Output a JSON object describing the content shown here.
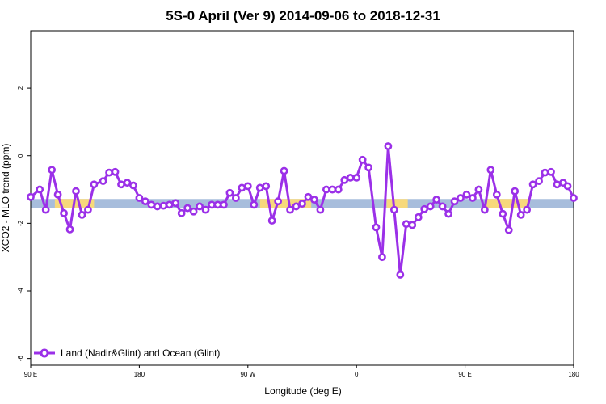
{
  "colors": {
    "series_line": "#9b30e8",
    "point_fill": "#ffffff",
    "ocean_band": "#a7bddc",
    "land_band": "#f7d97c",
    "frame": "#000000"
  },
  "chart_data": {
    "type": "line",
    "title": "5S-0 April (Ver 9)   2014-09-06 to 2018-12-31",
    "xlabel": "Longitude (deg E)",
    "ylabel": "XCO2 - MLO trend (ppm)",
    "xlim": [
      0,
      360
    ],
    "ylim": [
      -6.2,
      3.7
    ],
    "x_unit_note": "",
    "x_ticks": [
      {
        "value": 0,
        "label": "90 E"
      },
      {
        "value": 72,
        "label": "180"
      },
      {
        "value": 144,
        "label": "90 W"
      },
      {
        "value": 216,
        "label": "0"
      },
      {
        "value": 288,
        "label": "90 E"
      },
      {
        "value": 360,
        "label": "180"
      }
    ],
    "y_ticks": [
      {
        "value": -6,
        "label": "-6"
      },
      {
        "value": -4,
        "label": "-4"
      },
      {
        "value": -2,
        "label": "-2"
      },
      {
        "value": 0,
        "label": "0"
      },
      {
        "value": 2,
        "label": "2"
      }
    ],
    "grid": false,
    "legend_position": "bottom-left",
    "series": [
      {
        "name": "Land (Nadir&Glint) and Ocean (Glint)",
        "x": [
          0,
          6,
          10,
          14,
          18,
          22,
          26,
          30,
          34,
          38,
          42,
          48,
          52,
          56,
          60,
          64,
          68,
          72,
          76,
          80,
          84,
          88,
          92,
          96,
          100,
          104,
          108,
          112,
          116,
          120,
          124,
          128,
          132,
          136,
          140,
          144,
          148,
          152,
          156,
          160,
          164,
          168,
          172,
          176,
          180,
          184,
          188,
          192,
          196,
          200,
          204,
          208,
          212,
          216,
          220,
          224,
          229,
          233,
          237,
          241,
          245,
          249,
          253,
          257,
          261,
          265,
          269,
          273,
          277,
          281,
          285,
          289,
          293,
          297,
          301,
          305,
          309,
          313,
          317,
          321,
          325,
          329,
          333,
          337,
          341,
          345,
          349,
          353,
          356,
          360
        ],
        "y": [
          -1.22,
          -1.0,
          -1.6,
          -0.42,
          -1.15,
          -1.7,
          -2.18,
          -1.05,
          -1.75,
          -1.6,
          -0.85,
          -0.75,
          -0.5,
          -0.48,
          -0.85,
          -0.8,
          -0.88,
          -1.25,
          -1.35,
          -1.45,
          -1.5,
          -1.48,
          -1.45,
          -1.4,
          -1.7,
          -1.55,
          -1.65,
          -1.5,
          -1.6,
          -1.45,
          -1.45,
          -1.45,
          -1.1,
          -1.25,
          -0.95,
          -0.9,
          -1.45,
          -0.95,
          -0.9,
          -1.92,
          -1.35,
          -0.45,
          -1.6,
          -1.5,
          -1.42,
          -1.22,
          -1.3,
          -1.6,
          -1.0,
          -1.0,
          -1.0,
          -0.72,
          -0.65,
          -0.65,
          -0.12,
          -0.35,
          -2.12,
          -3.0,
          0.28,
          -1.6,
          -3.52,
          -2.02,
          -2.05,
          -1.82,
          -1.58,
          -1.5,
          -1.3,
          -1.5,
          -1.72,
          -1.35,
          -1.25,
          -1.15,
          -1.25,
          -1.0,
          -1.6,
          -0.42,
          -1.15,
          -1.72,
          -2.2,
          -1.05,
          -1.75,
          -1.6,
          -0.85,
          -0.75,
          -0.5,
          -0.48,
          -0.85,
          -0.8,
          -0.9,
          -1.25
        ]
      }
    ],
    "background_bands": [
      {
        "kind": "ocean",
        "y_from": -1.55,
        "y_to": -1.28
      },
      {
        "kind": "land",
        "x_from": 16,
        "x_to": 42,
        "y_from": -1.55,
        "y_to": -1.28
      },
      {
        "kind": "land",
        "x_from": 152,
        "x_to": 186,
        "y_from": -1.55,
        "y_to": -1.28
      },
      {
        "kind": "land",
        "x_from": 236,
        "x_to": 250,
        "y_from": -1.55,
        "y_to": -1.28
      },
      {
        "kind": "land",
        "x_from": 302,
        "x_to": 330,
        "y_from": -1.55,
        "y_to": -1.28
      }
    ]
  }
}
